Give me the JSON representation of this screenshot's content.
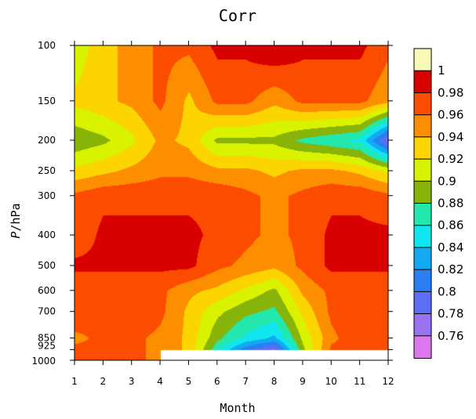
{
  "chart_data": {
    "type": "heatmap",
    "title": "Corr",
    "xlabel": "Month",
    "ylabel_italic": "P",
    "ylabel_rest": "/hPa",
    "x_ticks": [
      1,
      2,
      3,
      4,
      5,
      6,
      7,
      8,
      9,
      10,
      11,
      12
    ],
    "y_ticks": [
      100,
      150,
      200,
      250,
      300,
      400,
      500,
      600,
      700,
      850,
      925,
      1000
    ],
    "xlim": [
      1,
      12
    ],
    "ylim": [
      1000,
      100
    ],
    "y_scale": "log",
    "months": [
      1,
      2,
      3,
      4,
      5,
      6,
      7,
      8,
      9,
      10,
      11,
      12
    ],
    "levels": [
      100,
      150,
      200,
      250,
      300,
      400,
      500,
      600,
      700,
      850,
      925,
      1000
    ],
    "values": [
      [
        0.905,
        0.935,
        0.945,
        0.965,
        0.965,
        0.985,
        0.985,
        1.0,
        0.985,
        0.985,
        0.985,
        0.965
      ],
      [
        0.925,
        0.935,
        0.945,
        0.965,
        0.935,
        0.965,
        0.965,
        0.945,
        0.965,
        0.965,
        0.965,
        0.945
      ],
      [
        0.885,
        0.895,
        0.915,
        0.945,
        0.935,
        0.895,
        0.895,
        0.895,
        0.875,
        0.865,
        0.855,
        0.775
      ],
      [
        0.925,
        0.935,
        0.945,
        0.955,
        0.955,
        0.945,
        0.945,
        0.935,
        0.945,
        0.945,
        0.935,
        0.915
      ],
      [
        0.965,
        0.975,
        0.975,
        0.975,
        0.975,
        0.975,
        0.965,
        0.955,
        0.965,
        0.975,
        0.975,
        0.965
      ],
      [
        0.965,
        0.985,
        0.985,
        0.985,
        0.985,
        0.975,
        0.965,
        0.955,
        0.965,
        0.985,
        0.985,
        0.985
      ],
      [
        0.985,
        0.985,
        0.985,
        0.985,
        0.985,
        0.965,
        0.955,
        0.945,
        0.965,
        0.985,
        0.985,
        0.985
      ],
      [
        0.965,
        0.965,
        0.965,
        0.965,
        0.945,
        0.935,
        0.915,
        0.895,
        0.945,
        0.965,
        0.965,
        0.965
      ],
      [
        0.975,
        0.965,
        0.975,
        0.965,
        0.935,
        0.905,
        0.885,
        0.875,
        0.925,
        0.965,
        0.975,
        0.975
      ],
      [
        0.955,
        0.965,
        0.965,
        0.955,
        0.935,
        0.885,
        0.855,
        0.835,
        0.905,
        0.955,
        0.975,
        0.975
      ],
      [
        0.965,
        0.965,
        0.965,
        0.955,
        0.935,
        0.865,
        0.805,
        0.775,
        0.895,
        0.965,
        0.965,
        0.965
      ],
      [
        0.975,
        0.975,
        0.965,
        null,
        null,
        null,
        null,
        null,
        null,
        null,
        null,
        null
      ]
    ],
    "colorbar": {
      "levels": [
        0.76,
        0.78,
        0.8,
        0.82,
        0.84,
        0.86,
        0.88,
        0.9,
        0.92,
        0.94,
        0.96,
        0.98,
        1
      ],
      "labels": [
        "1",
        "0.98",
        "0.96",
        "0.94",
        "0.92",
        "0.9",
        "0.88",
        "0.86",
        "0.84",
        "0.82",
        "0.8",
        "0.78",
        "0.76"
      ],
      "colors": [
        "#dd77ee",
        "#9a73f2",
        "#5e6ef4",
        "#2c7ff2",
        "#12aaf2",
        "#10e6f0",
        "#22e8ae",
        "#88b40a",
        "#d8f200",
        "#fcd400",
        "#fc8e00",
        "#fc4c00",
        "#d90000",
        "#fafab4"
      ]
    }
  }
}
